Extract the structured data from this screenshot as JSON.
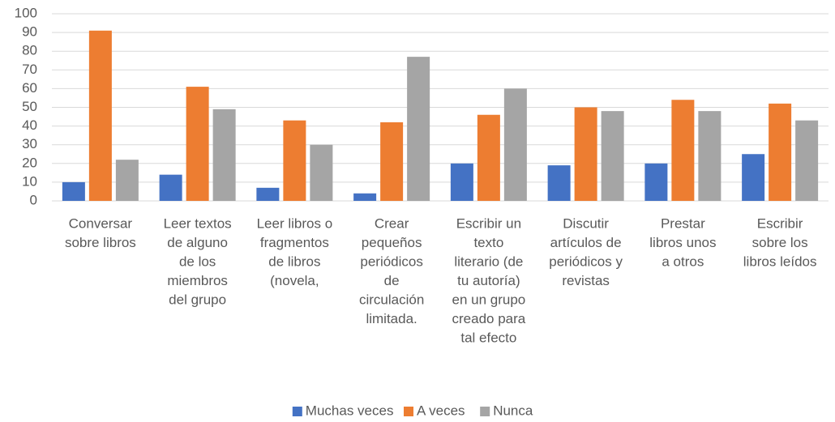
{
  "chart_data": {
    "type": "bar",
    "categories": [
      [
        "Conversar",
        "sobre libros"
      ],
      [
        "Leer  textos",
        "de alguno",
        "de los",
        "miembros",
        "del grupo"
      ],
      [
        "Leer libros o",
        "fragmentos",
        "de libros",
        "(novela,"
      ],
      [
        "Crear",
        "pequeños",
        "periódicos",
        "de",
        "circulación",
        "limitada."
      ],
      [
        "Escribir un",
        "texto",
        "literario (de",
        "tu autoría)",
        "en un grupo",
        "creado para",
        "tal efecto"
      ],
      [
        "Discutir",
        "artículos de",
        "periódicos y",
        "revistas"
      ],
      [
        "Prestar",
        "libros unos",
        "a otros"
      ],
      [
        "Escribir",
        "sobre los",
        "libros leídos"
      ]
    ],
    "series": [
      {
        "name": "Muchas veces",
        "color": "#4472c4",
        "values": [
          10,
          14,
          7,
          4,
          20,
          19,
          20,
          25
        ]
      },
      {
        "name": "A veces",
        "color": "#ed7d31",
        "values": [
          91,
          61,
          43,
          42,
          46,
          50,
          54,
          52
        ]
      },
      {
        "name": "Nunca",
        "color": "#a5a5a5",
        "values": [
          22,
          49,
          30,
          77,
          60,
          48,
          48,
          43
        ]
      }
    ],
    "ylim": [
      0,
      100
    ],
    "yticks": [
      0,
      10,
      20,
      30,
      40,
      50,
      60,
      70,
      80,
      90,
      100
    ],
    "grid": true,
    "legend": "bottom"
  }
}
